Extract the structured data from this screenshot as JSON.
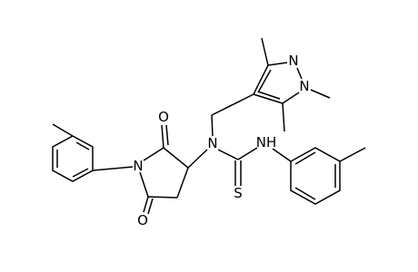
{
  "atoms": [
    {
      "label": "O"
    },
    {
      "label": "N"
    },
    {
      "label": "O"
    },
    {
      "label": "N"
    },
    {
      "label": "N"
    },
    {
      "label": "N"
    },
    {
      "label": "NH"
    },
    {
      "label": "S"
    }
  ]
}
